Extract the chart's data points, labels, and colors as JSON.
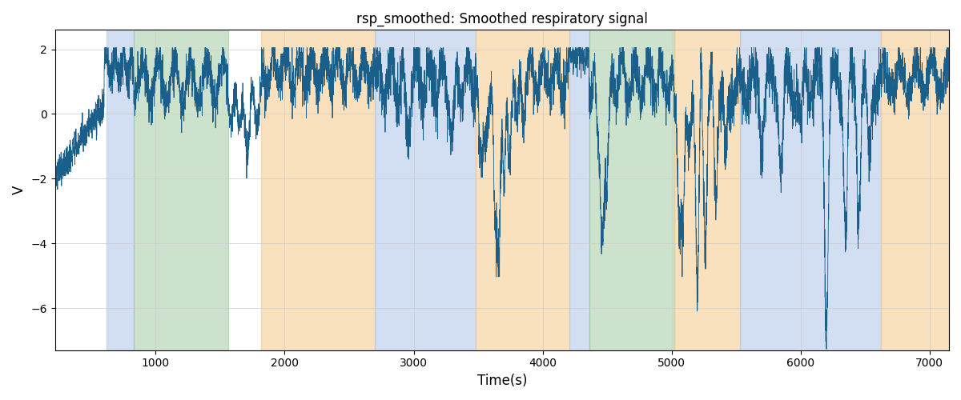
{
  "title": "rsp_smoothed: Smoothed respiratory signal",
  "xlabel": "Time(s)",
  "ylabel": "V",
  "xlim": [
    220,
    7150
  ],
  "ylim": [
    -7.3,
    2.6
  ],
  "line_color": "#1a5f8a",
  "line_width": 0.6,
  "background_color": "#ffffff",
  "grid_color": "#cccccc",
  "bands": [
    {
      "xmin": 620,
      "xmax": 830,
      "color": "#aec6e8",
      "alpha": 0.55
    },
    {
      "xmin": 830,
      "xmax": 1560,
      "color": "#90c090",
      "alpha": 0.45
    },
    {
      "xmin": 1820,
      "xmax": 2700,
      "color": "#f5c98a",
      "alpha": 0.55
    },
    {
      "xmin": 2700,
      "xmax": 3480,
      "color": "#aec6e8",
      "alpha": 0.55
    },
    {
      "xmin": 3480,
      "xmax": 4210,
      "color": "#f5c98a",
      "alpha": 0.55
    },
    {
      "xmin": 4210,
      "xmax": 4360,
      "color": "#aec6e8",
      "alpha": 0.55
    },
    {
      "xmin": 4360,
      "xmax": 5020,
      "color": "#90c090",
      "alpha": 0.45
    },
    {
      "xmin": 5020,
      "xmax": 5530,
      "color": "#f5c98a",
      "alpha": 0.55
    },
    {
      "xmin": 5530,
      "xmax": 6620,
      "color": "#aec6e8",
      "alpha": 0.55
    },
    {
      "xmin": 6620,
      "xmax": 7150,
      "color": "#f5c98a",
      "alpha": 0.55
    }
  ]
}
